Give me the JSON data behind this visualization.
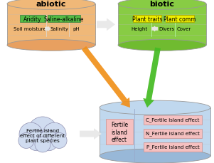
{
  "abiotic_label": "abiotic",
  "biotic_label": "biotic",
  "abiotic_body_color": "#f0b878",
  "abiotic_ellipse_color": "#e8a060",
  "biotic_body_color": "#88cc44",
  "biotic_ellipse_color": "#70bb30",
  "green_box_color": "#55bb44",
  "yellow_box_color": "#eeee00",
  "pink_box_color": "#f5c0c0",
  "blue_cyl_color": "#c0d8ee",
  "blue_cyl_dark": "#98b8d8",
  "cloud_fill": "#d0dcf0",
  "cloud_edge": "#9090b0",
  "white_arrow_color": "#e8e8e8",
  "orange_arrow_color": "#f0901a",
  "green_arrow_color": "#44bb22",
  "abiotic_row1": [
    "Aridity",
    "Saline-alkaline"
  ],
  "abiotic_row2_left": "Soil moisture",
  "abiotic_row2_right": [
    "Salinity",
    "pH"
  ],
  "biotic_row1": [
    "Plant traits",
    "Plant comm"
  ],
  "biotic_row2_left": "Height",
  "biotic_row2_right": [
    "Divers",
    "Cover"
  ],
  "fertile_boxes": [
    "C_Fertile island effect",
    "N_Fertile island effect",
    "P_Fertile island effect"
  ],
  "fertile_center_label": "Fertile\nisland\neffect",
  "cloud_label": "Fertile island\neffect of different\nplant species"
}
